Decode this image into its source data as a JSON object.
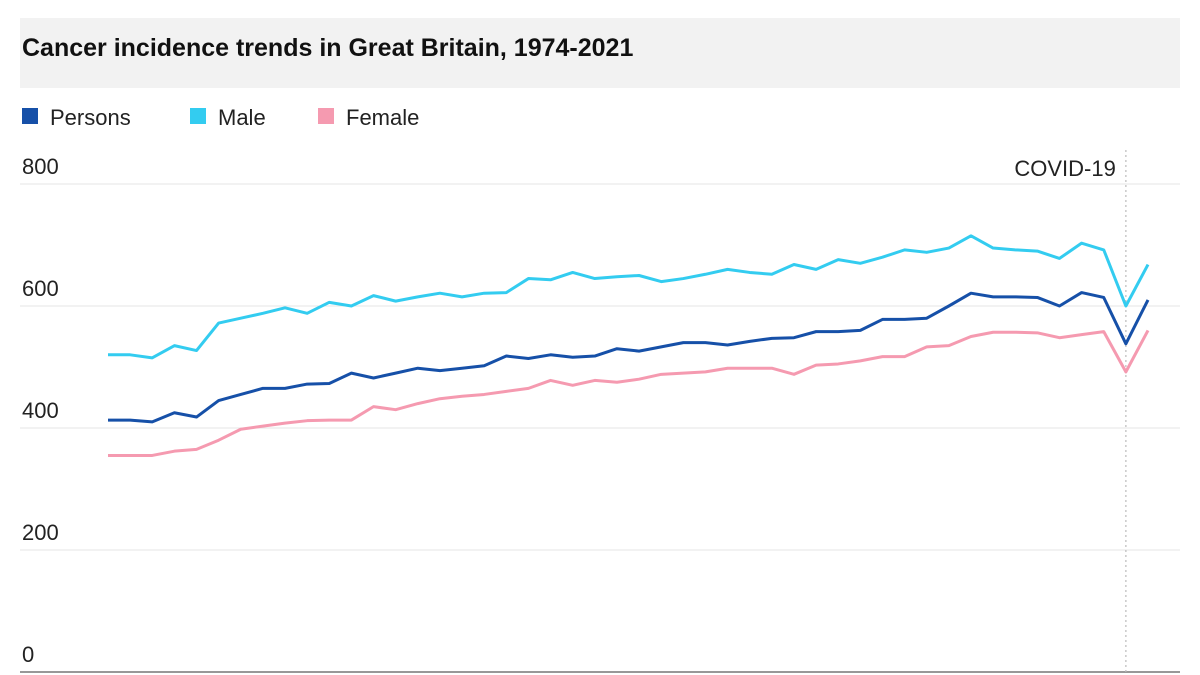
{
  "chart_data": {
    "type": "line",
    "title": "Cancer incidence trends in Great Britain, 1974-2021",
    "annotation": "COVID-19",
    "categories": [
      null,
      null,
      null,
      null,
      null,
      null,
      null,
      null,
      null,
      null,
      null,
      null,
      null,
      null,
      null,
      null,
      null,
      null,
      null,
      null,
      null,
      null,
      null,
      null,
      null,
      null,
      null,
      null,
      null,
      null,
      null,
      null,
      null,
      null,
      null,
      null,
      null,
      null,
      null,
      null,
      null,
      null,
      null,
      null,
      null,
      null,
      null,
      null
    ],
    "series": [
      {
        "name": "Persons",
        "color": "#1650a8",
        "values": [
          413,
          413,
          410,
          425,
          418,
          445,
          455,
          465,
          465,
          472,
          473,
          490,
          482,
          490,
          498,
          494,
          498,
          502,
          518,
          514,
          520,
          516,
          518,
          530,
          526,
          533,
          540,
          540,
          536,
          542,
          547,
          548,
          558,
          558,
          560,
          578,
          578,
          580,
          600,
          621,
          615,
          615,
          614,
          600,
          622,
          614,
          538,
          610
        ]
      },
      {
        "name": "Male",
        "color": "#33ccf0",
        "values": [
          520,
          520,
          515,
          535,
          527,
          572,
          580,
          588,
          597,
          588,
          606,
          600,
          617,
          608,
          615,
          621,
          615,
          621,
          622,
          645,
          643,
          655,
          645,
          648,
          650,
          640,
          645,
          652,
          660,
          655,
          652,
          668,
          660,
          676,
          670,
          680,
          692,
          688,
          695,
          715,
          695,
          692,
          690,
          678,
          703,
          692,
          600,
          668
        ]
      },
      {
        "name": "Female",
        "color": "#f59ab0",
        "values": [
          355,
          355,
          355,
          362,
          365,
          380,
          398,
          403,
          408,
          412,
          413,
          413,
          435,
          430,
          440,
          448,
          452,
          455,
          460,
          465,
          478,
          470,
          478,
          475,
          480,
          488,
          490,
          492,
          498,
          498,
          498,
          488,
          503,
          505,
          510,
          517,
          517,
          533,
          535,
          550,
          557,
          557,
          556,
          548,
          553,
          558,
          492,
          560
        ]
      }
    ],
    "ylim": [
      0,
      800
    ],
    "yticks": [
      0,
      200,
      400,
      600,
      800
    ],
    "grid": true
  }
}
